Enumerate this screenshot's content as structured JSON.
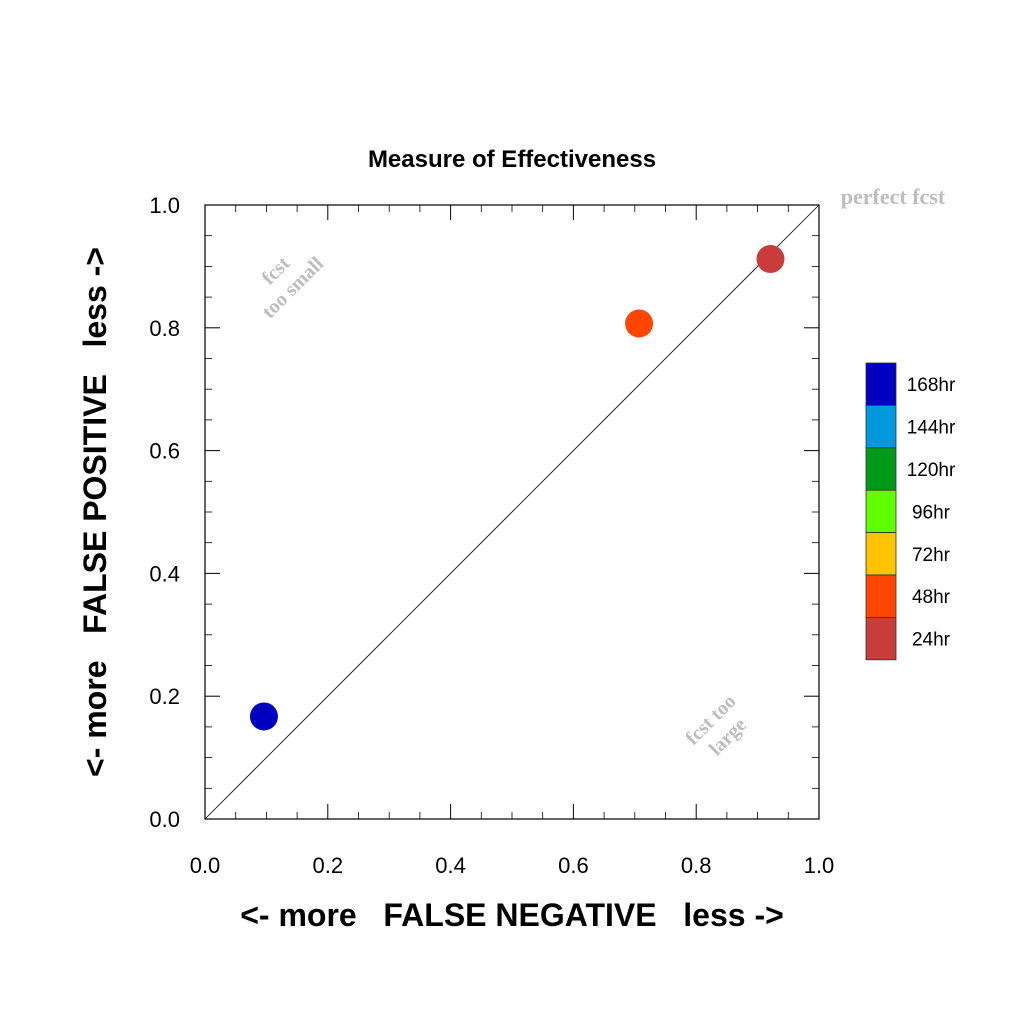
{
  "chart_data": {
    "type": "scatter",
    "title": "Measure of Effectiveness",
    "xlabel": "<- more   FALSE NEGATIVE   less ->",
    "ylabel": "<- more   FALSE POSITIVE   less ->",
    "xlim": [
      0.0,
      1.0
    ],
    "ylim": [
      0.0,
      1.0
    ],
    "x_ticks": [
      "0.0",
      "0.2",
      "0.4",
      "0.6",
      "0.8",
      "1.0"
    ],
    "y_ticks": [
      "0.0",
      "0.2",
      "0.4",
      "0.6",
      "0.8",
      "1.0"
    ],
    "grid": false,
    "reference_line": "y = x",
    "annotations": {
      "perfect": "perfect fcst",
      "small_1": "fcst",
      "small_2": "too small",
      "large_1": "fcst too",
      "large_2": "large"
    },
    "legend": {
      "placement": "right",
      "entries": [
        {
          "label": "168hr",
          "color": "#0000c0"
        },
        {
          "label": "144hr",
          "color": "#0099dd"
        },
        {
          "label": "120hr",
          "color": "#009a1a"
        },
        {
          "label": "96hr",
          "color": "#60ff00"
        },
        {
          "label": "72hr",
          "color": "#ffc300"
        },
        {
          "label": "48hr",
          "color": "#ff4500"
        },
        {
          "label": "24hr",
          "color": "#c83c3c"
        }
      ]
    },
    "points": [
      {
        "label": "168hr",
        "x": 0.096,
        "y": 0.167,
        "color": "#0000c0"
      },
      {
        "label": "48hr",
        "x": 0.707,
        "y": 0.807,
        "color": "#ff4500"
      },
      {
        "label": "24hr",
        "x": 0.921,
        "y": 0.912,
        "color": "#c83c3c"
      }
    ]
  }
}
